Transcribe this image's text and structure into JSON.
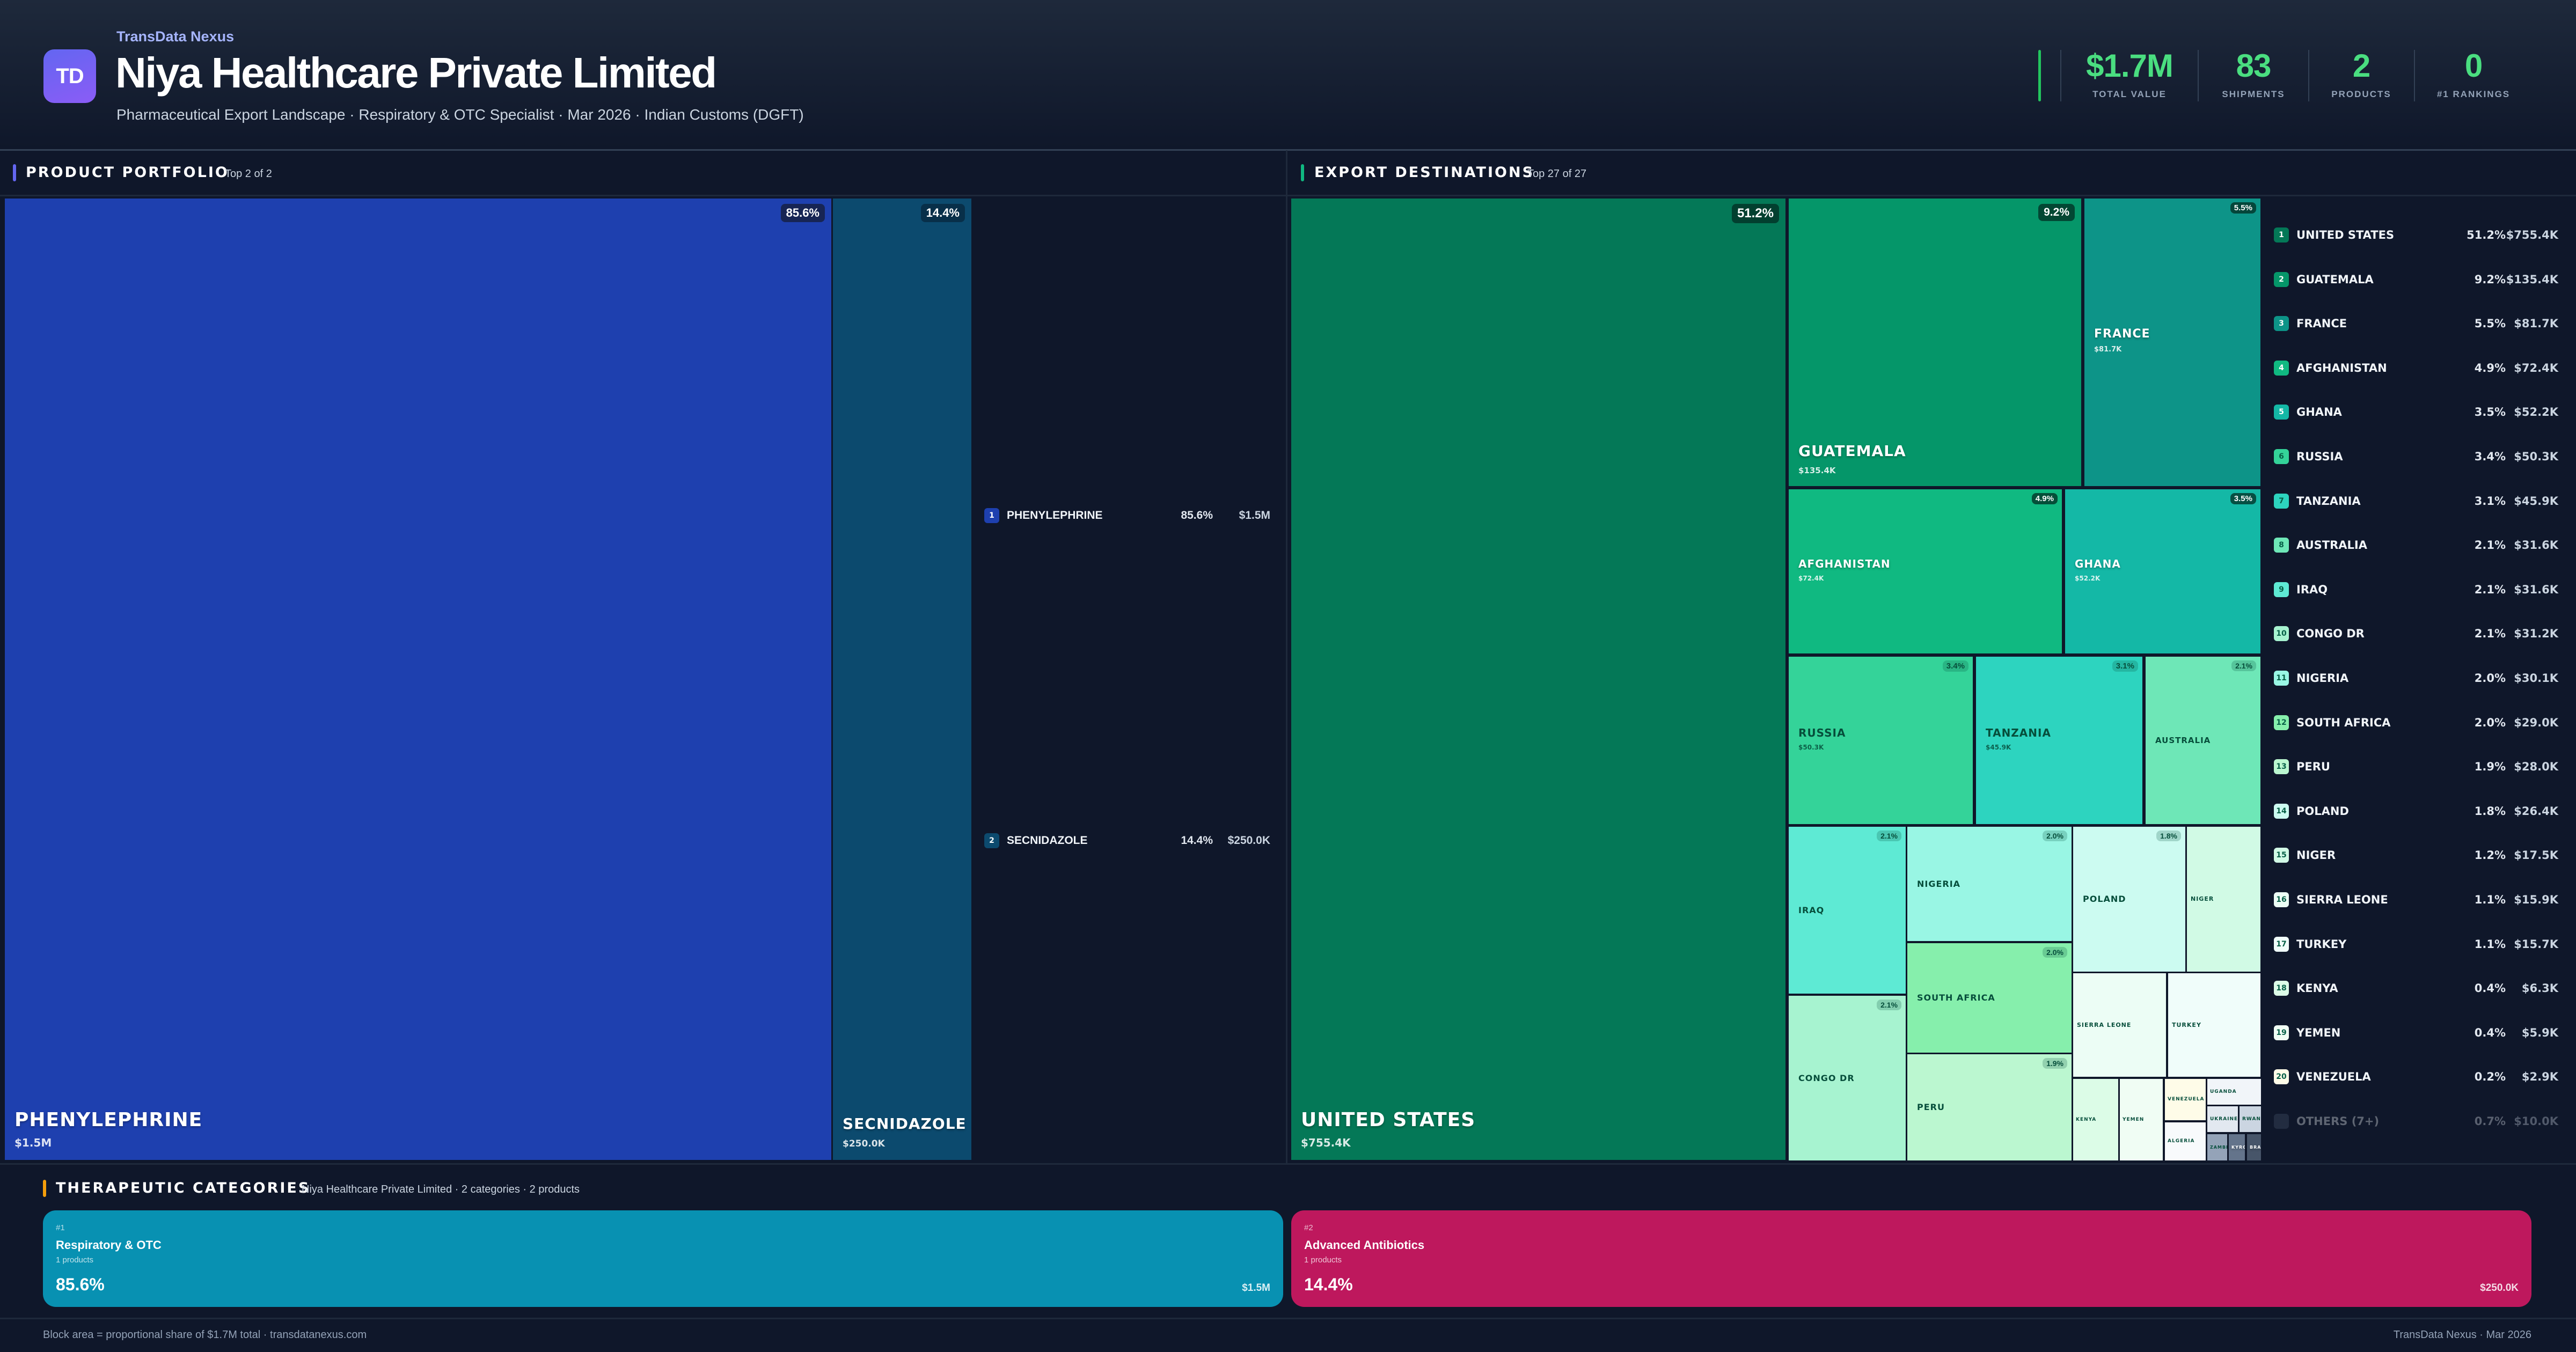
{
  "header": {
    "logo_text": "TD",
    "brand": "TransData Nexus",
    "title": "Niya Healthcare Private Limited",
    "subtitle": "Pharmaceutical Export Landscape · Respiratory & OTC Specialist · Mar 2026 · Indian Customs (DGFT)"
  },
  "stats": [
    {
      "value": "$1.7M",
      "label": "TOTAL VALUE"
    },
    {
      "value": "83",
      "label": "SHIPMENTS"
    },
    {
      "value": "2",
      "label": "PRODUCTS"
    },
    {
      "value": "0",
      "label": "#1 RANKINGS"
    }
  ],
  "colors": {
    "accent_green": "#4ade80",
    "product_accent": "#6366f1",
    "export_accent": "#10b981",
    "category_accent": "#f59e0b",
    "background": "#0f172a"
  },
  "product_portfolio": {
    "title": "PRODUCT PORTFOLIO",
    "subtitle": "Top 2 of 2",
    "items": [
      {
        "rank": "1",
        "name": "PHENYLEPHRINE",
        "pct": "85.6%",
        "value": "$1.5M",
        "color": "#1e40af"
      },
      {
        "rank": "2",
        "name": "SECNIDAZOLE",
        "pct": "14.4%",
        "value": "$250.0K",
        "color": "#0c4a6e"
      }
    ]
  },
  "export_destinations": {
    "title": "EXPORT DESTINATIONS",
    "subtitle": "Top 27 of 27",
    "items": [
      {
        "rank": "1",
        "name": "UNITED STATES",
        "pct": "51.2%",
        "value": "$755.4K",
        "color": "#047857"
      },
      {
        "rank": "2",
        "name": "GUATEMALA",
        "pct": "9.2%",
        "value": "$135.4K",
        "color": "#059669"
      },
      {
        "rank": "3",
        "name": "FRANCE",
        "pct": "5.5%",
        "value": "$81.7K",
        "color": "#0d9488"
      },
      {
        "rank": "4",
        "name": "AFGHANISTAN",
        "pct": "4.9%",
        "value": "$72.4K",
        "color": "#10b981"
      },
      {
        "rank": "5",
        "name": "GHANA",
        "pct": "3.5%",
        "value": "$52.2K",
        "color": "#14b8a6"
      },
      {
        "rank": "6",
        "name": "RUSSIA",
        "pct": "3.4%",
        "value": "$50.3K",
        "color": "#34d399"
      },
      {
        "rank": "7",
        "name": "TANZANIA",
        "pct": "3.1%",
        "value": "$45.9K",
        "color": "#2dd4bf"
      },
      {
        "rank": "8",
        "name": "AUSTRALIA",
        "pct": "2.1%",
        "value": "$31.6K",
        "color": "#6ee7b7"
      },
      {
        "rank": "9",
        "name": "IRAQ",
        "pct": "2.1%",
        "value": "$31.6K",
        "color": "#5eead4"
      },
      {
        "rank": "10",
        "name": "CONGO DR",
        "pct": "2.1%",
        "value": "$31.2K",
        "color": "#a7f3d0"
      },
      {
        "rank": "11",
        "name": "NIGERIA",
        "pct": "2.0%",
        "value": "$30.1K",
        "color": "#99f6e4"
      },
      {
        "rank": "12",
        "name": "SOUTH AFRICA",
        "pct": "2.0%",
        "value": "$29.0K",
        "color": "#86efac"
      },
      {
        "rank": "13",
        "name": "PERU",
        "pct": "1.9%",
        "value": "$28.0K",
        "color": "#bbf7d0"
      },
      {
        "rank": "14",
        "name": "POLAND",
        "pct": "1.8%",
        "value": "$26.4K",
        "color": "#ccfbf1"
      },
      {
        "rank": "15",
        "name": "NIGER",
        "pct": "1.2%",
        "value": "$17.5K",
        "color": "#d1fae5"
      },
      {
        "rank": "16",
        "name": "SIERRA LEONE",
        "pct": "1.1%",
        "value": "$15.9K",
        "color": "#ecfdf5"
      },
      {
        "rank": "17",
        "name": "TURKEY",
        "pct": "1.1%",
        "value": "$15.7K",
        "color": "#f0fdfa"
      },
      {
        "rank": "18",
        "name": "KENYA",
        "pct": "0.4%",
        "value": "$6.3K",
        "color": "#dcfce7"
      },
      {
        "rank": "19",
        "name": "YEMEN",
        "pct": "0.4%",
        "value": "$5.9K",
        "color": "#f0fdf4"
      },
      {
        "rank": "20",
        "name": "VENEZUELA",
        "pct": "0.2%",
        "value": "$2.9K",
        "color": "#fefce8"
      }
    ],
    "minor_items": [
      {
        "name": "ALGERIA",
        "color": "#f8fafc"
      },
      {
        "name": "UGANDA",
        "color": "#f1f5f9"
      },
      {
        "name": "UKRAINE",
        "color": "#e2e8f0"
      },
      {
        "name": "RWANDA",
        "color": "#cbd5e1"
      },
      {
        "name": "ZAMBIA",
        "color": "#94a3b8"
      },
      {
        "name": "KYRGYZSTAN",
        "color": "#64748b"
      },
      {
        "name": "BRAZIL",
        "color": "#475569"
      }
    ],
    "others": {
      "name": "OTHERS (7+)",
      "pct": "0.7%",
      "value": "$10.0K",
      "color": "#475569"
    }
  },
  "therapeutic": {
    "title": "THERAPEUTIC CATEGORIES",
    "subtitle": "Niya Healthcare Private Limited · 2 categories · 2 products",
    "cards": [
      {
        "rank": "#1",
        "name": "Respiratory & OTC",
        "products": "1 products",
        "pct": "85.6%",
        "value": "$1.5M",
        "color": "#0891b2"
      },
      {
        "rank": "#2",
        "name": "Advanced Antibiotics",
        "products": "1 products",
        "pct": "14.4%",
        "value": "$250.0K",
        "color": "#be185d"
      }
    ]
  },
  "footer": {
    "left": "Block area = proportional share of $1.7M total · transdatanexus.com",
    "right": "TransData Nexus · Mar 2026"
  }
}
